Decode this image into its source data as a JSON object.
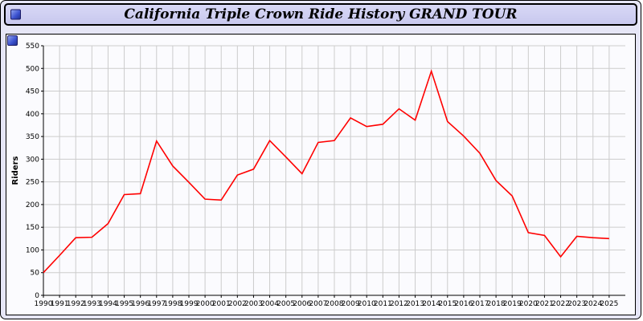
{
  "titlebar": {
    "title": "California Triple Crown Ride History GRAND TOUR"
  },
  "icons": {
    "titlebar_icon": "blue-gradient-square",
    "panel_corner_icon": "blue-gradient-square"
  },
  "colors": {
    "page_bg": "#e6e6f6",
    "titlebar_bg": "#c8c8ee",
    "panel_bg": "#fbfbfe",
    "grid": "#cccccc",
    "axis": "#000000",
    "line": "#ff0000"
  },
  "chart_data": {
    "type": "line",
    "title": "California Triple Crown Ride History GRAND TOUR",
    "xlabel": "",
    "ylabel": "Riders",
    "ylim": [
      0,
      550
    ],
    "ytick_step": 50,
    "grid": true,
    "legend": "none",
    "line_color": "#ff0000",
    "categories": [
      "1990",
      "1991",
      "1992",
      "1993",
      "1994",
      "1995",
      "1996",
      "1997",
      "1998",
      "1999",
      "2000",
      "2001",
      "2002",
      "2003",
      "2004",
      "2005",
      "2006",
      "2007",
      "2008",
      "2009",
      "2010",
      "2011",
      "2012",
      "2013",
      "2014",
      "2015",
      "2016",
      "2017",
      "2018",
      "2019",
      "2020",
      "2021",
      "2022",
      "2023",
      "2024",
      "2025"
    ],
    "values": [
      50,
      88,
      127,
      128,
      158,
      222,
      224,
      340,
      285,
      249,
      212,
      210,
      265,
      278,
      341,
      305,
      268,
      337,
      341,
      391,
      372,
      377,
      411,
      386,
      494,
      383,
      351,
      313,
      253,
      219,
      138,
      132,
      85,
      130,
      127,
      125
    ]
  }
}
